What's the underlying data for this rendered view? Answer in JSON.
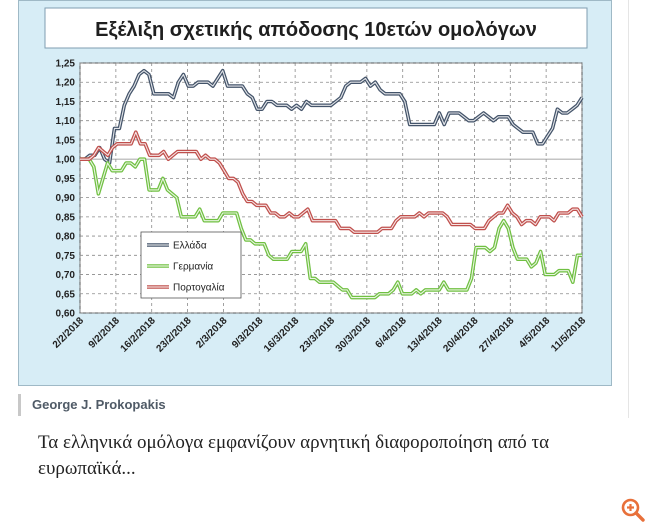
{
  "author": {
    "name": "George J. Prokopakis"
  },
  "caption": {
    "text": "Τα ελληνικά ομόλογα εμφανίζουν αρνητική διαφοροποίηση από τα ευρωπαϊκά..."
  },
  "zoom": {
    "icon": "zoom-in-icon",
    "color": "#e8703a"
  },
  "chart_data": {
    "type": "line",
    "title": "Εξέλιξη σχετικής απόδοσης 10ετών ομολόγων",
    "x_tick_labels": [
      "2/2/2018",
      "9/2/2018",
      "16/2/2018",
      "23/2/2018",
      "2/3/2018",
      "9/3/2018",
      "16/3/2018",
      "23/3/2018",
      "30/3/2018",
      "6/4/2018",
      "13/4/2018",
      "20/4/2018",
      "27/4/2018",
      "4/5/2018",
      "11/5/2018"
    ],
    "y_tick_labels": [
      "1,25",
      "1,20",
      "1,15",
      "1,10",
      "1,05",
      "1,00",
      "0,95",
      "0,90",
      "0,85",
      "0,80",
      "0,75",
      "0,70",
      "0,65",
      "0,60"
    ],
    "ylim": [
      0.6,
      1.25
    ],
    "grid": true,
    "legend_position": "bottom-left",
    "series": [
      {
        "name": "Ελλάδα",
        "color": "#44546a",
        "values": [
          1.0,
          1.0,
          1.01,
          1.01,
          1.03,
          1.0,
          0.99,
          1.08,
          1.08,
          1.14,
          1.17,
          1.19,
          1.22,
          1.23,
          1.22,
          1.17,
          1.17,
          1.17,
          1.17,
          1.16,
          1.2,
          1.22,
          1.19,
          1.19,
          1.2,
          1.2,
          1.2,
          1.19,
          1.21,
          1.23,
          1.19,
          1.19,
          1.19,
          1.19,
          1.17,
          1.16,
          1.13,
          1.13,
          1.15,
          1.15,
          1.14,
          1.14,
          1.14,
          1.13,
          1.14,
          1.13,
          1.15,
          1.14,
          1.14,
          1.14,
          1.14,
          1.14,
          1.15,
          1.16,
          1.19,
          1.2,
          1.2,
          1.2,
          1.21,
          1.19,
          1.2,
          1.18,
          1.17,
          1.17,
          1.17,
          1.17,
          1.15,
          1.09,
          1.09,
          1.09,
          1.09,
          1.09,
          1.09,
          1.12,
          1.09,
          1.12,
          1.12,
          1.12,
          1.11,
          1.1,
          1.1,
          1.11,
          1.12,
          1.11,
          1.1,
          1.11,
          1.11,
          1.11,
          1.09,
          1.08,
          1.07,
          1.07,
          1.07,
          1.04,
          1.04,
          1.06,
          1.08,
          1.13,
          1.12,
          1.12,
          1.13,
          1.14,
          1.16
        ]
      },
      {
        "name": "Γερμανία",
        "color": "#70c042",
        "values": [
          1.0,
          1.0,
          1.0,
          0.98,
          0.91,
          0.95,
          0.99,
          0.97,
          0.97,
          0.97,
          0.99,
          0.99,
          0.98,
          1.0,
          1.0,
          0.92,
          0.92,
          0.92,
          0.95,
          0.92,
          0.91,
          0.9,
          0.85,
          0.85,
          0.85,
          0.85,
          0.87,
          0.84,
          0.84,
          0.84,
          0.84,
          0.86,
          0.86,
          0.86,
          0.86,
          0.82,
          0.79,
          0.79,
          0.78,
          0.78,
          0.78,
          0.75,
          0.74,
          0.74,
          0.74,
          0.74,
          0.76,
          0.76,
          0.76,
          0.78,
          0.69,
          0.69,
          0.68,
          0.68,
          0.68,
          0.68,
          0.67,
          0.66,
          0.66,
          0.64,
          0.64,
          0.64,
          0.64,
          0.64,
          0.64,
          0.65,
          0.65,
          0.65,
          0.66,
          0.68,
          0.65,
          0.65,
          0.65,
          0.66,
          0.65,
          0.66,
          0.66,
          0.66,
          0.66,
          0.68,
          0.66,
          0.66,
          0.66,
          0.66,
          0.66,
          0.69,
          0.77,
          0.77,
          0.77,
          0.76,
          0.77,
          0.82,
          0.84,
          0.82,
          0.77,
          0.74,
          0.74,
          0.74,
          0.72,
          0.73,
          0.76,
          0.7,
          0.7,
          0.7,
          0.71,
          0.71,
          0.71,
          0.68,
          0.75,
          0.75
        ]
      },
      {
        "name": "Πορτογαλία",
        "color": "#c0504d",
        "values": [
          1.0,
          1.0,
          1.0,
          1.01,
          1.03,
          1.02,
          1.01,
          1.03,
          1.04,
          1.04,
          1.04,
          1.04,
          1.07,
          1.04,
          1.04,
          1.01,
          1.01,
          1.01,
          1.02,
          1.0,
          1.01,
          1.02,
          1.02,
          1.02,
          1.02,
          1.02,
          1.0,
          1.01,
          1.0,
          1.0,
          0.99,
          0.97,
          0.95,
          0.95,
          0.94,
          0.91,
          0.89,
          0.89,
          0.88,
          0.88,
          0.88,
          0.86,
          0.86,
          0.85,
          0.85,
          0.86,
          0.85,
          0.85,
          0.86,
          0.87,
          0.84,
          0.84,
          0.84,
          0.84,
          0.84,
          0.84,
          0.82,
          0.82,
          0.82,
          0.81,
          0.81,
          0.81,
          0.81,
          0.81,
          0.81,
          0.82,
          0.82,
          0.82,
          0.84,
          0.85,
          0.85,
          0.85,
          0.85,
          0.86,
          0.85,
          0.86,
          0.86,
          0.86,
          0.86,
          0.85,
          0.83,
          0.83,
          0.83,
          0.83,
          0.83,
          0.82,
          0.82,
          0.82,
          0.84,
          0.85,
          0.86,
          0.86,
          0.88,
          0.86,
          0.85,
          0.83,
          0.84,
          0.84,
          0.83,
          0.85,
          0.85,
          0.85,
          0.84,
          0.86,
          0.86,
          0.86,
          0.87,
          0.87,
          0.85
        ]
      }
    ]
  }
}
